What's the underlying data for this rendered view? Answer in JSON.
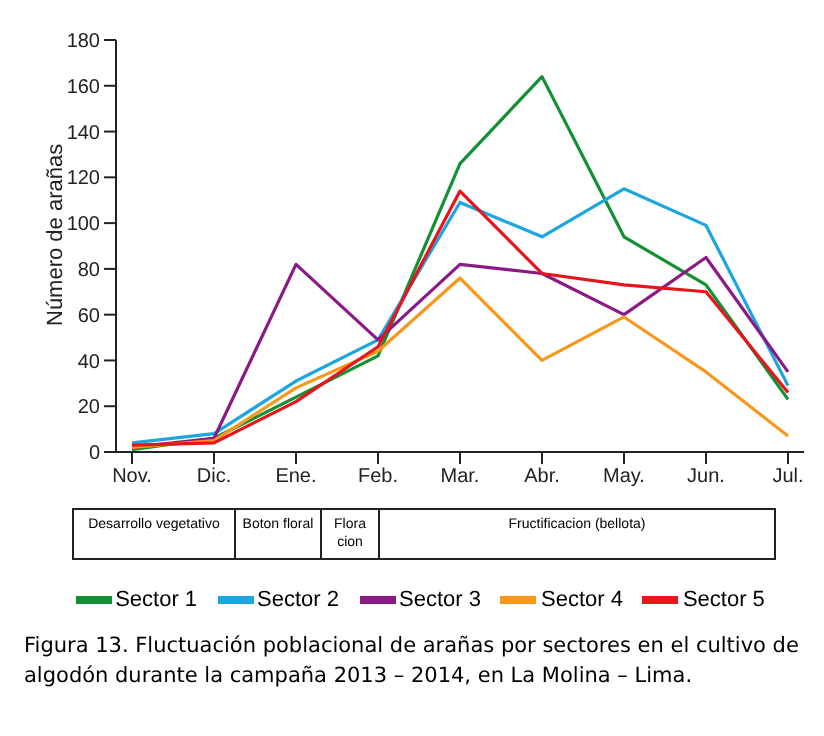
{
  "chart_data": {
    "type": "line",
    "ylabel": "Número de arañas",
    "categories": [
      "Nov.",
      "Dic.",
      "Ene.",
      "Feb.",
      "Mar.",
      "Abr.",
      "May.",
      "Jun.",
      "Jul."
    ],
    "series": [
      {
        "name": "Sector 1",
        "color": "#119133",
        "values": [
          1,
          6,
          24,
          42,
          126,
          164,
          94,
          73,
          23
        ]
      },
      {
        "name": "Sector 2",
        "color": "#1ba5e1",
        "values": [
          4,
          8,
          31,
          49,
          109,
          94,
          115,
          99,
          29
        ]
      },
      {
        "name": "Sector 3",
        "color": "#8b1a86",
        "values": [
          2,
          6,
          82,
          49,
          82,
          78,
          60,
          85,
          35
        ]
      },
      {
        "name": "Sector 4",
        "color": "#f7981d",
        "values": [
          2,
          5,
          28,
          44,
          76,
          40,
          59,
          35,
          7
        ]
      },
      {
        "name": "Sector 5",
        "color": "#e8141c",
        "values": [
          3,
          4,
          22,
          46,
          114,
          78,
          73,
          70,
          26
        ]
      }
    ],
    "ylim": [
      0,
      180
    ],
    "yticks": [
      0,
      20,
      40,
      60,
      80,
      100,
      120,
      140,
      160,
      180
    ],
    "grid": false,
    "legend": "bottom",
    "marker": "none",
    "line_style": "solid",
    "annotations": [
      "Desarrollo vegetativo",
      "Boton floral",
      "Flora cion",
      "Fructificacion (bellota)",
      "Figura 13. Fluctuación poblacional de arañas por sectores en el cultivo de algodón durante la campaña 2013 – 2014, en La Molina – Lima."
    ]
  }
}
